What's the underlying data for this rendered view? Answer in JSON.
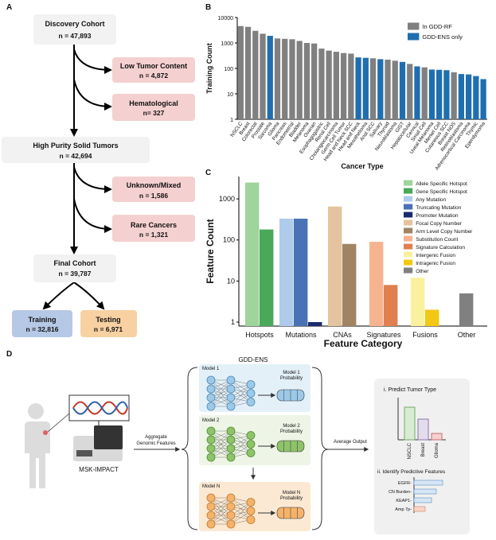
{
  "panel_labels": [
    "A",
    "B",
    "C",
    "D"
  ],
  "flowchart": {
    "discovery": {
      "title": "Discovery Cohort",
      "n": "n = 47,893"
    },
    "low_tumor": {
      "title": "Low Tumor Content",
      "n": "n = 4,872"
    },
    "hematological": {
      "title": "Hematological",
      "n": "n= 327"
    },
    "high_purity": {
      "title": "High Purity Solid Tumors",
      "n": "n = 42,694"
    },
    "unknown": {
      "title": "Unknown/Mixed",
      "n": "n = 1,586"
    },
    "rare": {
      "title": "Rare Cancers",
      "n": "n = 1,321"
    },
    "final": {
      "title": "Final Cohort",
      "n": "n = 39,787"
    },
    "training": {
      "title": "Training",
      "n": "n = 32,816"
    },
    "testing": {
      "title": "Testing",
      "n": "n = 6,971"
    }
  },
  "diagram": {
    "ensemble": "GDD-ENS",
    "model1": "Model 1",
    "model1_prob": [
      "Model 1",
      "Probability"
    ],
    "model2": "Model 2",
    "model2_prob": [
      "Model 2",
      "Probability"
    ],
    "modelN": "Model N",
    "modelN_prob": [
      "Model N",
      "Probability"
    ],
    "platform": "MSK-IMPACT",
    "aggregate": [
      "Aggregate",
      "Genomic Features"
    ],
    "average": "Average Output",
    "predict_title": "i. Predict Tumor Type",
    "predict_labels": [
      "NSCLC",
      "Breast",
      "Glioma"
    ],
    "features_title": "ii. Identify Predictive Features",
    "features": [
      "EGFR-",
      "CN Burden-",
      "KEAP1-",
      "Amp 7p-"
    ]
  },
  "chart_data": [
    {
      "type": "bar",
      "log_y": true,
      "x_label": "Cancer Type",
      "y_label": "Training Count",
      "legend": "upper right",
      "categories": [
        "NSCLC",
        "Breast",
        "Colorectal",
        "Prostate",
        "Sarcoma",
        "Glioma",
        "Pancreas",
        "Endometrial",
        "Bladder",
        "Melanoma",
        "Ovarian",
        "Esophagogastric",
        "Renal Cell",
        "Cholangiocarcinoma",
        "Germ Cell Tumor",
        "Head and Neck SCC",
        "Head and Neck",
        "Mesothelioma",
        "Anal SCC",
        "Salivary",
        "Thyroid",
        "Neuroblastoma",
        "GIST",
        "Hepatocellular",
        "Cervical",
        "Small Cell",
        "Uveal Melanoma",
        "Merkel Cell",
        "Cutaneous SCC",
        "Breast NOS",
        "Retinoblastoma",
        "Adrenocortical Carcinoma",
        "Thymic",
        "Ependymoma"
      ],
      "series": [
        {
          "name": "In GDD-RF",
          "color": "#808080",
          "values": [
            4600,
            4300,
            3000,
            2300,
            null,
            1500,
            1450,
            1400,
            1200,
            1000,
            950,
            600,
            500,
            450,
            400,
            380,
            null,
            null,
            250,
            null,
            220,
            200,
            null,
            150,
            null,
            110,
            null,
            null,
            null,
            70,
            null,
            null,
            null,
            null
          ]
        },
        {
          "name": "GDD-ENS only",
          "color": "#1f6fb0",
          "values": [
            null,
            null,
            null,
            null,
            1900,
            null,
            null,
            null,
            null,
            null,
            null,
            null,
            null,
            null,
            null,
            null,
            270,
            260,
            null,
            230,
            null,
            null,
            180,
            null,
            120,
            null,
            90,
            88,
            85,
            null,
            60,
            58,
            50,
            38
          ]
        }
      ],
      "ylim": [
        1,
        10000
      ],
      "yticks": [
        1,
        10,
        100,
        1000,
        10000
      ]
    },
    {
      "type": "bar",
      "log_y": true,
      "x_label": "Feature Category",
      "y_label": "Feature Count",
      "legend": "upper right",
      "categories": [
        "Hotspots",
        "Mutations",
        "CNAs",
        "Signatures",
        "Fusions",
        "Other"
      ],
      "series": [
        {
          "name": "Allele Specific Hotspot",
          "color": "#9fd49b",
          "values": [
            2500,
            null,
            null,
            null,
            null,
            null
          ]
        },
        {
          "name": "Gene Specific Hotspot",
          "color": "#4aa85a",
          "values": [
            180,
            null,
            null,
            null,
            null,
            null
          ]
        },
        {
          "name": "Any Mutation",
          "color": "#aecbeb",
          "values": [
            null,
            330,
            null,
            null,
            null,
            null
          ]
        },
        {
          "name": "Truncating Mutation",
          "color": "#4a72b5",
          "values": [
            null,
            330,
            null,
            null,
            null,
            null
          ]
        },
        {
          "name": "Promoter Mutation",
          "color": "#1a2a6c",
          "values": [
            null,
            1,
            null,
            null,
            null,
            null
          ]
        },
        {
          "name": "Focal Copy Number",
          "color": "#e3c49e",
          "values": [
            null,
            null,
            650,
            null,
            null,
            null
          ]
        },
        {
          "name": "Arm Level Copy Number",
          "color": "#a18463",
          "values": [
            null,
            null,
            80,
            null,
            null,
            null
          ]
        },
        {
          "name": "Substitution Count",
          "color": "#f5b48f",
          "values": [
            null,
            null,
            null,
            90,
            null,
            null
          ]
        },
        {
          "name": "Signature Calculation",
          "color": "#e0804f",
          "values": [
            null,
            null,
            null,
            8,
            null,
            null
          ]
        },
        {
          "name": "Intergenic Fusion",
          "color": "#f9f19d",
          "values": [
            null,
            null,
            null,
            null,
            12,
            null
          ]
        },
        {
          "name": "Intragenic Fusion",
          "color": "#f2c811",
          "values": [
            null,
            null,
            null,
            null,
            2,
            null
          ]
        },
        {
          "name": "Other",
          "color": "#808080",
          "values": [
            null,
            null,
            null,
            null,
            null,
            5
          ]
        }
      ],
      "ylim": [
        0.8,
        3500
      ],
      "yticks": [
        1,
        10,
        100,
        1000
      ]
    }
  ]
}
